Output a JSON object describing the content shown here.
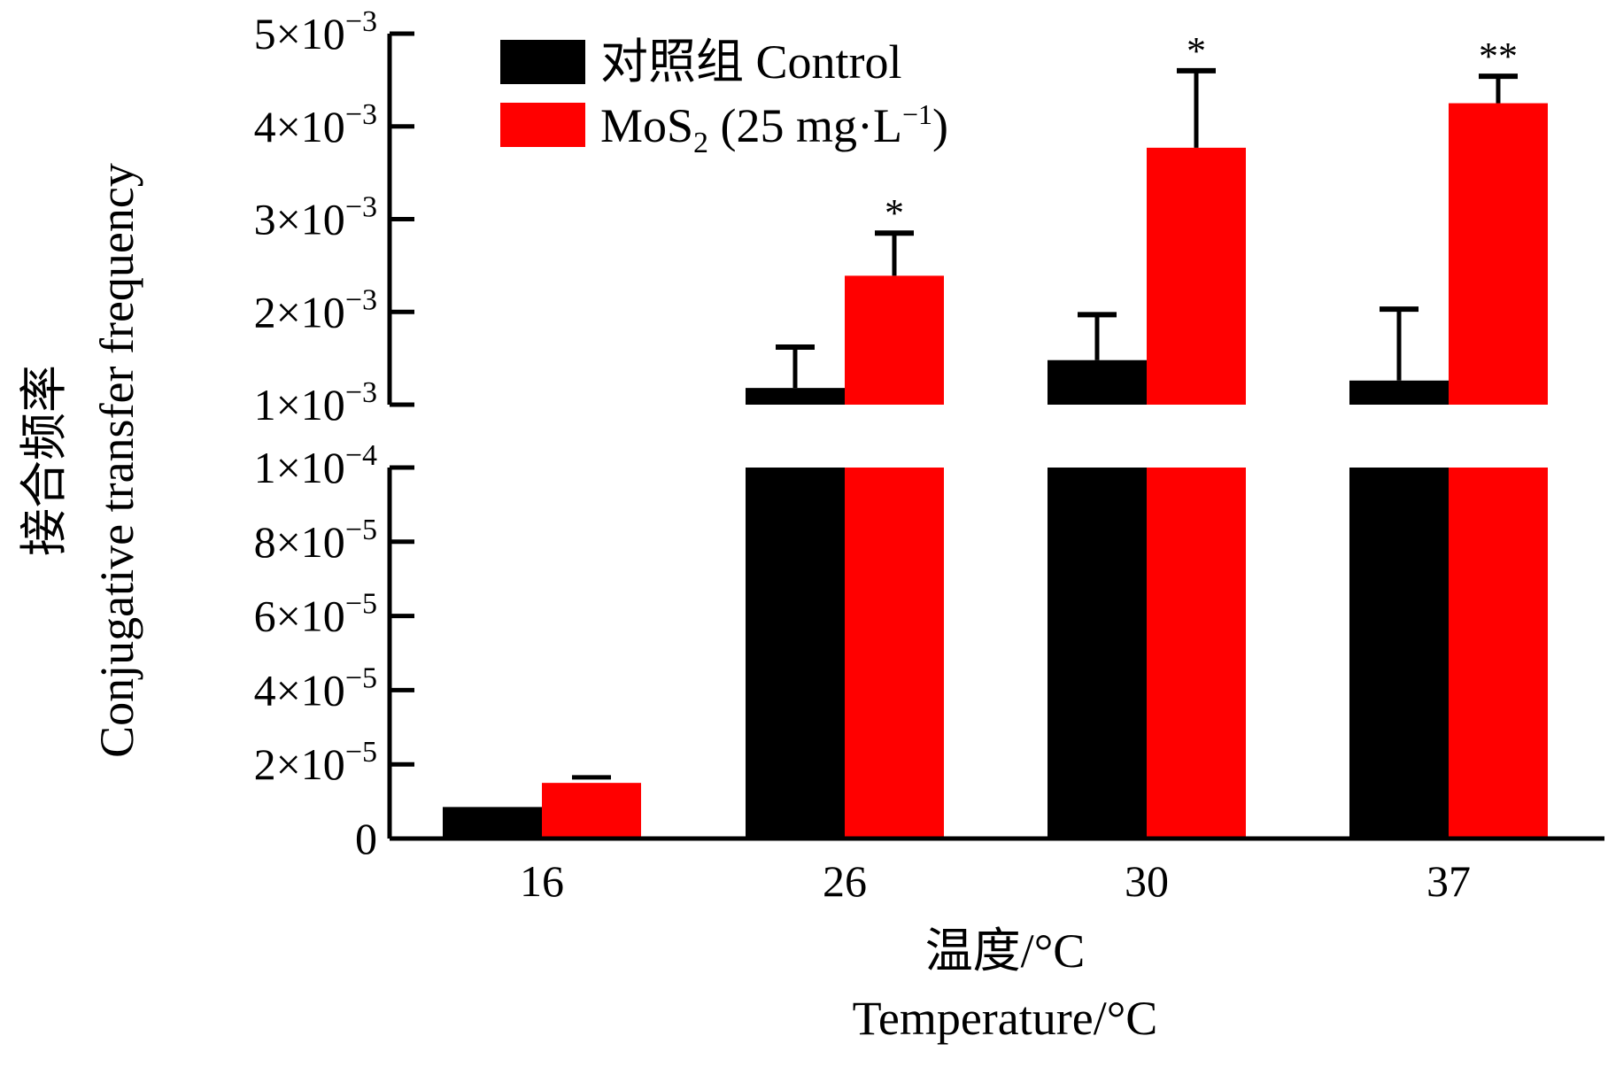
{
  "chart_data": {
    "type": "bar",
    "categories": [
      "16",
      "26",
      "30",
      "37"
    ],
    "series": [
      {
        "name": "对照组 Control",
        "color": "#000000",
        "values": [
          8.5e-06,
          0.00118,
          0.00148,
          0.00126
        ],
        "error": [
          0,
          0.00044,
          0.00049,
          0.00077
        ],
        "significance": [
          "",
          "",
          "",
          ""
        ]
      },
      {
        "name": "MoS2 (25 mg·L-1)",
        "color": "#ff0000",
        "values": [
          1.5e-05,
          0.00239,
          0.00377,
          0.00425
        ],
        "error": [
          1.5e-06,
          0.00046,
          0.00083,
          0.00029
        ],
        "significance": [
          "",
          "*",
          "*",
          "**"
        ]
      }
    ],
    "legend": {
      "position": "top",
      "entries": [
        {
          "label": "对照组 Control",
          "color": "#000000"
        },
        {
          "label_main": "MoS",
          "label_sub": "2",
          "label_mid": " (25 mg·L",
          "label_sup": "−1",
          "label_end": ")",
          "color": "#ff0000"
        }
      ]
    },
    "ylabel": [
      "接合频率",
      "Conjugative transfer frequency"
    ],
    "xlabel": [
      "温度/°C",
      "Temperature/°C"
    ],
    "y_axis_broken": true,
    "y_lower_segment": {
      "range": [
        0,
        0.0001
      ],
      "ticks": [
        {
          "value": 0,
          "label": "0"
        },
        {
          "value": 2e-05,
          "mantissa": "2×10",
          "exp": "−5"
        },
        {
          "value": 4e-05,
          "mantissa": "4×10",
          "exp": "−5"
        },
        {
          "value": 6e-05,
          "mantissa": "6×10",
          "exp": "−5"
        },
        {
          "value": 8e-05,
          "mantissa": "8×10",
          "exp": "−5"
        },
        {
          "value": 0.0001,
          "mantissa": "1×10",
          "exp": "−4"
        }
      ]
    },
    "y_upper_segment": {
      "range": [
        0.001,
        0.005
      ],
      "ticks": [
        {
          "value": 0.001,
          "mantissa": "1×10",
          "exp": "−3"
        },
        {
          "value": 0.002,
          "mantissa": "2×10",
          "exp": "−3"
        },
        {
          "value": 0.003,
          "mantissa": "3×10",
          "exp": "−3"
        },
        {
          "value": 0.004,
          "mantissa": "4×10",
          "exp": "−3"
        },
        {
          "value": 0.005,
          "mantissa": "5×10",
          "exp": "−3"
        }
      ]
    },
    "grid": false
  }
}
